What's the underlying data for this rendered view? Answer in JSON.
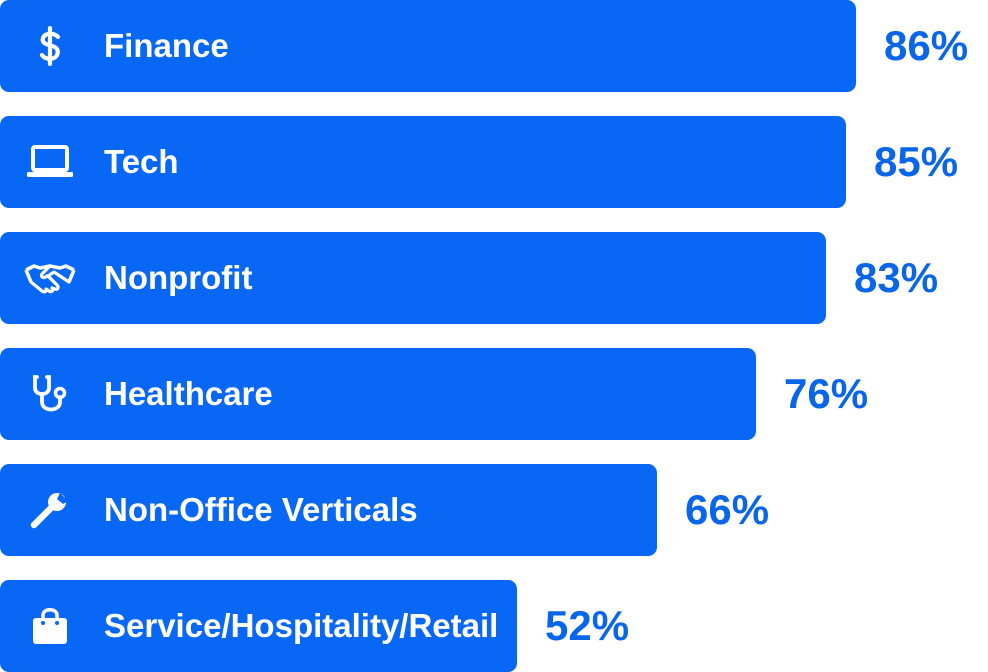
{
  "colors": {
    "bar": "#0867f5",
    "value_text": "#0a66e8",
    "label_text": "#ffffff"
  },
  "chart_data": {
    "type": "bar",
    "orientation": "horizontal",
    "categories": [
      "Finance",
      "Tech",
      "Nonprofit",
      "Healthcare",
      "Non-Office Verticals",
      "Service/Hospitality/Retail"
    ],
    "values": [
      86,
      85,
      83,
      76,
      66,
      52
    ],
    "value_labels": [
      "86%",
      "85%",
      "83%",
      "76%",
      "66%",
      "52%"
    ],
    "icons": [
      "dollar-icon",
      "laptop-icon",
      "handshake-icon",
      "stethoscope-icon",
      "wrench-icon",
      "shopping-bag-icon"
    ],
    "xlim": [
      0,
      100
    ],
    "grid": false,
    "legend": "none"
  }
}
